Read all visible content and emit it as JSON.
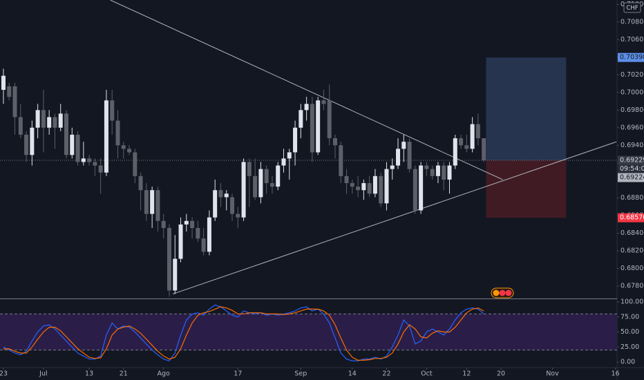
{
  "chart_data": {
    "type": "candlestick",
    "currency": "CHF",
    "up_color": "#e0e3eb",
    "down_color": "#5d6069",
    "ohlc": [
      [
        0.7003,
        0.7027,
        0.6987,
        0.7019
      ],
      [
        0.7007,
        0.7011,
        0.6991,
        0.6995
      ],
      [
        0.7007,
        0.7011,
        0.6952,
        0.6972
      ],
      [
        0.6972,
        0.6987,
        0.6948,
        0.6952
      ],
      [
        0.6952,
        0.6956,
        0.6921,
        0.6929
      ],
      [
        0.6929,
        0.6968,
        0.6917,
        0.696
      ],
      [
        0.696,
        0.6987,
        0.6948,
        0.698
      ],
      [
        0.698,
        0.7003,
        0.6932,
        0.696
      ],
      [
        0.696,
        0.698,
        0.6952,
        0.6972
      ],
      [
        0.6972,
        0.6976,
        0.6936,
        0.696
      ],
      [
        0.696,
        0.6987,
        0.6956,
        0.6976
      ],
      [
        0.6976,
        0.698,
        0.6925,
        0.6929
      ],
      [
        0.6929,
        0.696,
        0.6925,
        0.6952
      ],
      [
        0.6952,
        0.6956,
        0.6917,
        0.6921
      ],
      [
        0.6921,
        0.6944,
        0.6917,
        0.6925
      ],
      [
        0.6925,
        0.6929,
        0.6917,
        0.6921
      ],
      [
        0.6921,
        0.6925,
        0.6905,
        0.6917
      ],
      [
        0.6917,
        0.6925,
        0.6885,
        0.6909
      ],
      [
        0.6909,
        0.7003,
        0.6905,
        0.6991
      ],
      [
        0.6991,
        0.7003,
        0.6952,
        0.6968
      ],
      [
        0.6968,
        0.698,
        0.6925,
        0.694
      ],
      [
        0.694,
        0.6944,
        0.6925,
        0.6936
      ],
      [
        0.6936,
        0.694,
        0.6929,
        0.6932
      ],
      [
        0.6932,
        0.6936,
        0.6897,
        0.6905
      ],
      [
        0.6905,
        0.6909,
        0.6866,
        0.6889
      ],
      [
        0.6889,
        0.6897,
        0.6854,
        0.6862
      ],
      [
        0.6862,
        0.6893,
        0.6846,
        0.6889
      ],
      [
        0.6889,
        0.6893,
        0.6842,
        0.6854
      ],
      [
        0.6854,
        0.6862,
        0.6834,
        0.6846
      ],
      [
        0.6846,
        0.685,
        0.6768,
        0.6775
      ],
      [
        0.6775,
        0.6838,
        0.6771,
        0.6811
      ],
      [
        0.6811,
        0.6858,
        0.6807,
        0.685
      ],
      [
        0.685,
        0.6862,
        0.6842,
        0.6854
      ],
      [
        0.6854,
        0.6858,
        0.6834,
        0.6846
      ],
      [
        0.6846,
        0.6854,
        0.683,
        0.6834
      ],
      [
        0.6834,
        0.6846,
        0.6815,
        0.6819
      ],
      [
        0.6819,
        0.6866,
        0.6815,
        0.6858
      ],
      [
        0.6858,
        0.6901,
        0.6854,
        0.6889
      ],
      [
        0.6889,
        0.6897,
        0.687,
        0.6881
      ],
      [
        0.6881,
        0.6889,
        0.6866,
        0.6885
      ],
      [
        0.6881,
        0.6885,
        0.6854,
        0.6862
      ],
      [
        0.6862,
        0.687,
        0.6846,
        0.6858
      ],
      [
        0.6858,
        0.6925,
        0.6854,
        0.6921
      ],
      [
        0.6921,
        0.6925,
        0.687,
        0.6905
      ],
      [
        0.6905,
        0.6925,
        0.6878,
        0.6881
      ],
      [
        0.6881,
        0.6921,
        0.6874,
        0.6913
      ],
      [
        0.6913,
        0.6917,
        0.6885,
        0.6897
      ],
      [
        0.6897,
        0.6905,
        0.6885,
        0.6893
      ],
      [
        0.6893,
        0.6921,
        0.6889,
        0.6917
      ],
      [
        0.6917,
        0.6936,
        0.6909,
        0.6925
      ],
      [
        0.6925,
        0.6936,
        0.6901,
        0.6932
      ],
      [
        0.6932,
        0.6968,
        0.6917,
        0.696
      ],
      [
        0.696,
        0.6987,
        0.6948,
        0.698
      ],
      [
        0.698,
        0.6995,
        0.6968,
        0.6987
      ],
      [
        0.6987,
        0.6995,
        0.6921,
        0.6932
      ],
      [
        0.6932,
        0.6995,
        0.6929,
        0.6991
      ],
      [
        0.6991,
        0.7003,
        0.698,
        0.6987
      ],
      [
        0.6991,
        0.7009,
        0.694,
        0.6948
      ],
      [
        0.6948,
        0.6952,
        0.6925,
        0.694
      ],
      [
        0.694,
        0.6944,
        0.6897,
        0.6905
      ],
      [
        0.6905,
        0.6913,
        0.6885,
        0.6897
      ],
      [
        0.6897,
        0.6901,
        0.6885,
        0.6893
      ],
      [
        0.6893,
        0.6905,
        0.6881,
        0.6889
      ],
      [
        0.6889,
        0.6901,
        0.6878,
        0.6897
      ],
      [
        0.6897,
        0.6905,
        0.6881,
        0.6885
      ],
      [
        0.6885,
        0.6913,
        0.6881,
        0.6905
      ],
      [
        0.6905,
        0.6909,
        0.687,
        0.6874
      ],
      [
        0.6874,
        0.6921,
        0.6866,
        0.6913
      ],
      [
        0.6913,
        0.6925,
        0.6901,
        0.6917
      ],
      [
        0.6917,
        0.6948,
        0.6913,
        0.6936
      ],
      [
        0.6936,
        0.6952,
        0.6921,
        0.6944
      ],
      [
        0.6944,
        0.6948,
        0.6909,
        0.6913
      ],
      [
        0.6913,
        0.6917,
        0.6862,
        0.6866
      ],
      [
        0.6866,
        0.6921,
        0.6862,
        0.6917
      ],
      [
        0.6917,
        0.6921,
        0.6905,
        0.6913
      ],
      [
        0.6913,
        0.6917,
        0.6901,
        0.6905
      ],
      [
        0.6905,
        0.6921,
        0.6897,
        0.6917
      ],
      [
        0.6917,
        0.6921,
        0.6889,
        0.6901
      ],
      [
        0.6901,
        0.6921,
        0.6885,
        0.6917
      ],
      [
        0.6917,
        0.6952,
        0.6913,
        0.6948
      ],
      [
        0.6948,
        0.6952,
        0.6936,
        0.694
      ],
      [
        0.694,
        0.6952,
        0.6932,
        0.6936
      ],
      [
        0.6936,
        0.6972,
        0.6932,
        0.6964
      ],
      [
        0.6964,
        0.6976,
        0.694,
        0.6948
      ],
      [
        0.6948,
        0.6948,
        0.6921,
        0.6923
      ]
    ],
    "xlim": [
      -0.6,
      107.3
    ],
    "xticks": [
      {
        "value": 0,
        "label": "23"
      },
      {
        "value": 7,
        "label": "Jul"
      },
      {
        "value": 15,
        "label": "13"
      },
      {
        "value": 21,
        "label": "21"
      },
      {
        "value": 28,
        "label": "Ago"
      },
      {
        "value": 41,
        "label": "17"
      },
      {
        "value": 52,
        "label": "Sep"
      },
      {
        "value": 61,
        "label": "14"
      },
      {
        "value": 67,
        "label": "22"
      },
      {
        "value": 74,
        "label": "Oct"
      },
      {
        "value": 81,
        "label": "12"
      },
      {
        "value": 87,
        "label": "20"
      },
      {
        "value": 96,
        "label": "Nov"
      },
      {
        "value": 107,
        "label": "16"
      }
    ],
    "ylim": [
      0.67659,
      0.71051
    ],
    "yticks": [
      {
        "value": 0.71,
        "label": "0.71000"
      },
      {
        "value": 0.708,
        "label": "0.70800"
      },
      {
        "value": 0.706,
        "label": "0.70600"
      },
      {
        "value": 0.704,
        "label": "0.70400"
      },
      {
        "value": 0.702,
        "label": "0.70200"
      },
      {
        "value": 0.7,
        "label": "0.70000"
      },
      {
        "value": 0.698,
        "label": "0.69800"
      },
      {
        "value": 0.696,
        "label": "0.69600"
      },
      {
        "value": 0.694,
        "label": "0.69400"
      },
      {
        "value": 0.692,
        "label": "0.69200"
      },
      {
        "value": 0.69,
        "label": "0.69000"
      },
      {
        "value": 0.688,
        "label": "0.68800"
      },
      {
        "value": 0.686,
        "label": "0.68600"
      },
      {
        "value": 0.684,
        "label": "0.68400"
      },
      {
        "value": 0.682,
        "label": "0.68200"
      },
      {
        "value": 0.68,
        "label": "0.68000"
      },
      {
        "value": 0.678,
        "label": "0.67800"
      }
    ],
    "trendlines": [
      [
        [
          18.7,
          0.7105
        ],
        [
          87.3,
          0.6901
        ]
      ],
      [
        [
          29.6,
          0.6771
        ],
        [
          107.2,
          0.6944
        ]
      ]
    ],
    "position": {
      "x": [
        84.4,
        98.4
      ],
      "entry": {
        "value": 0.69229,
        "label": "0.69229"
      },
      "target": {
        "value": 0.70398,
        "label": "0.70398"
      },
      "stop": {
        "value": 0.68576,
        "label": "0.68576"
      }
    },
    "countdown": "09:54:02",
    "last_price": {
      "value": 0.69224,
      "label": "0.69224"
    },
    "indicator": {
      "type": "line",
      "ylim": [
        -8,
        104.6
      ],
      "yticks": [
        {
          "value": 100,
          "label": "100.00"
        },
        {
          "value": 75,
          "label": "75.00"
        },
        {
          "value": 50,
          "label": "50.00"
        },
        {
          "value": 25,
          "label": "25.00"
        },
        {
          "value": 0,
          "label": "0.00"
        }
      ],
      "band": [
        20,
        80
      ],
      "series": [
        {
          "color": "#2962ff",
          "values": [
            25,
            20,
            15,
            12,
            18,
            35,
            50,
            60,
            62,
            55,
            45,
            35,
            25,
            15,
            10,
            5,
            5,
            10,
            45,
            65,
            55,
            60,
            58,
            50,
            40,
            30,
            20,
            12,
            5,
            2,
            15,
            45,
            70,
            80,
            82,
            78,
            88,
            95,
            92,
            85,
            78,
            75,
            85,
            82,
            80,
            82,
            78,
            80,
            78,
            80,
            82,
            85,
            90,
            92,
            85,
            88,
            80,
            65,
            40,
            15,
            5,
            2,
            2,
            5,
            5,
            8,
            5,
            10,
            25,
            45,
            70,
            60,
            30,
            35,
            50,
            55,
            50,
            45,
            55,
            70,
            82,
            88,
            90,
            88,
            80
          ]
        },
        {
          "color": "#ff6d00",
          "values": [
            22,
            22,
            18,
            15,
            15,
            25,
            38,
            50,
            58,
            58,
            52,
            42,
            32,
            22,
            15,
            8,
            6,
            7,
            22,
            45,
            55,
            58,
            60,
            55,
            48,
            38,
            28,
            18,
            10,
            5,
            8,
            22,
            45,
            65,
            78,
            82,
            84,
            88,
            92,
            90,
            86,
            80,
            80,
            82,
            82,
            82,
            80,
            80,
            80,
            79,
            80,
            82,
            85,
            88,
            88,
            88,
            85,
            78,
            62,
            40,
            20,
            8,
            3,
            3,
            4,
            6,
            6,
            8,
            15,
            30,
            50,
            62,
            55,
            42,
            40,
            48,
            52,
            50,
            50,
            58,
            70,
            82,
            88,
            90,
            85
          ]
        }
      ]
    }
  }
}
